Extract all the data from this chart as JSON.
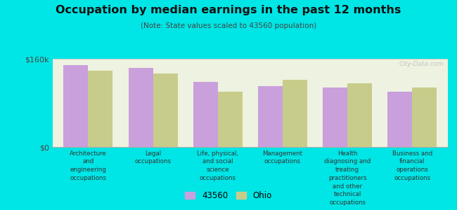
{
  "title": "Occupation by median earnings in the past 12 months",
  "subtitle": "(Note: State values scaled to 43560 population)",
  "background_color": "#00e5e5",
  "plot_bg_color": "#eef2e0",
  "categories": [
    "Architecture\nand\nengineering\noccupations",
    "Legal\noccupations",
    "Life, physical,\nand social\nscience\noccupations",
    "Management\noccupations",
    "Health\ndiagnosing and\ntreating\npractitioners\nand other\ntechnical\noccupations",
    "Business and\nfinancial\noperations\noccupations"
  ],
  "values_43560": [
    148000,
    143000,
    118000,
    110000,
    108000,
    100000
  ],
  "values_ohio": [
    138000,
    133000,
    100000,
    122000,
    115000,
    108000
  ],
  "color_43560": "#c9a0dc",
  "color_ohio": "#c8cc8a",
  "ylim": [
    0,
    160000
  ],
  "ytick_labels": [
    "$0",
    "$160k"
  ],
  "legend_43560": "43560",
  "legend_ohio": "Ohio",
  "watermark": "City-Data.com"
}
